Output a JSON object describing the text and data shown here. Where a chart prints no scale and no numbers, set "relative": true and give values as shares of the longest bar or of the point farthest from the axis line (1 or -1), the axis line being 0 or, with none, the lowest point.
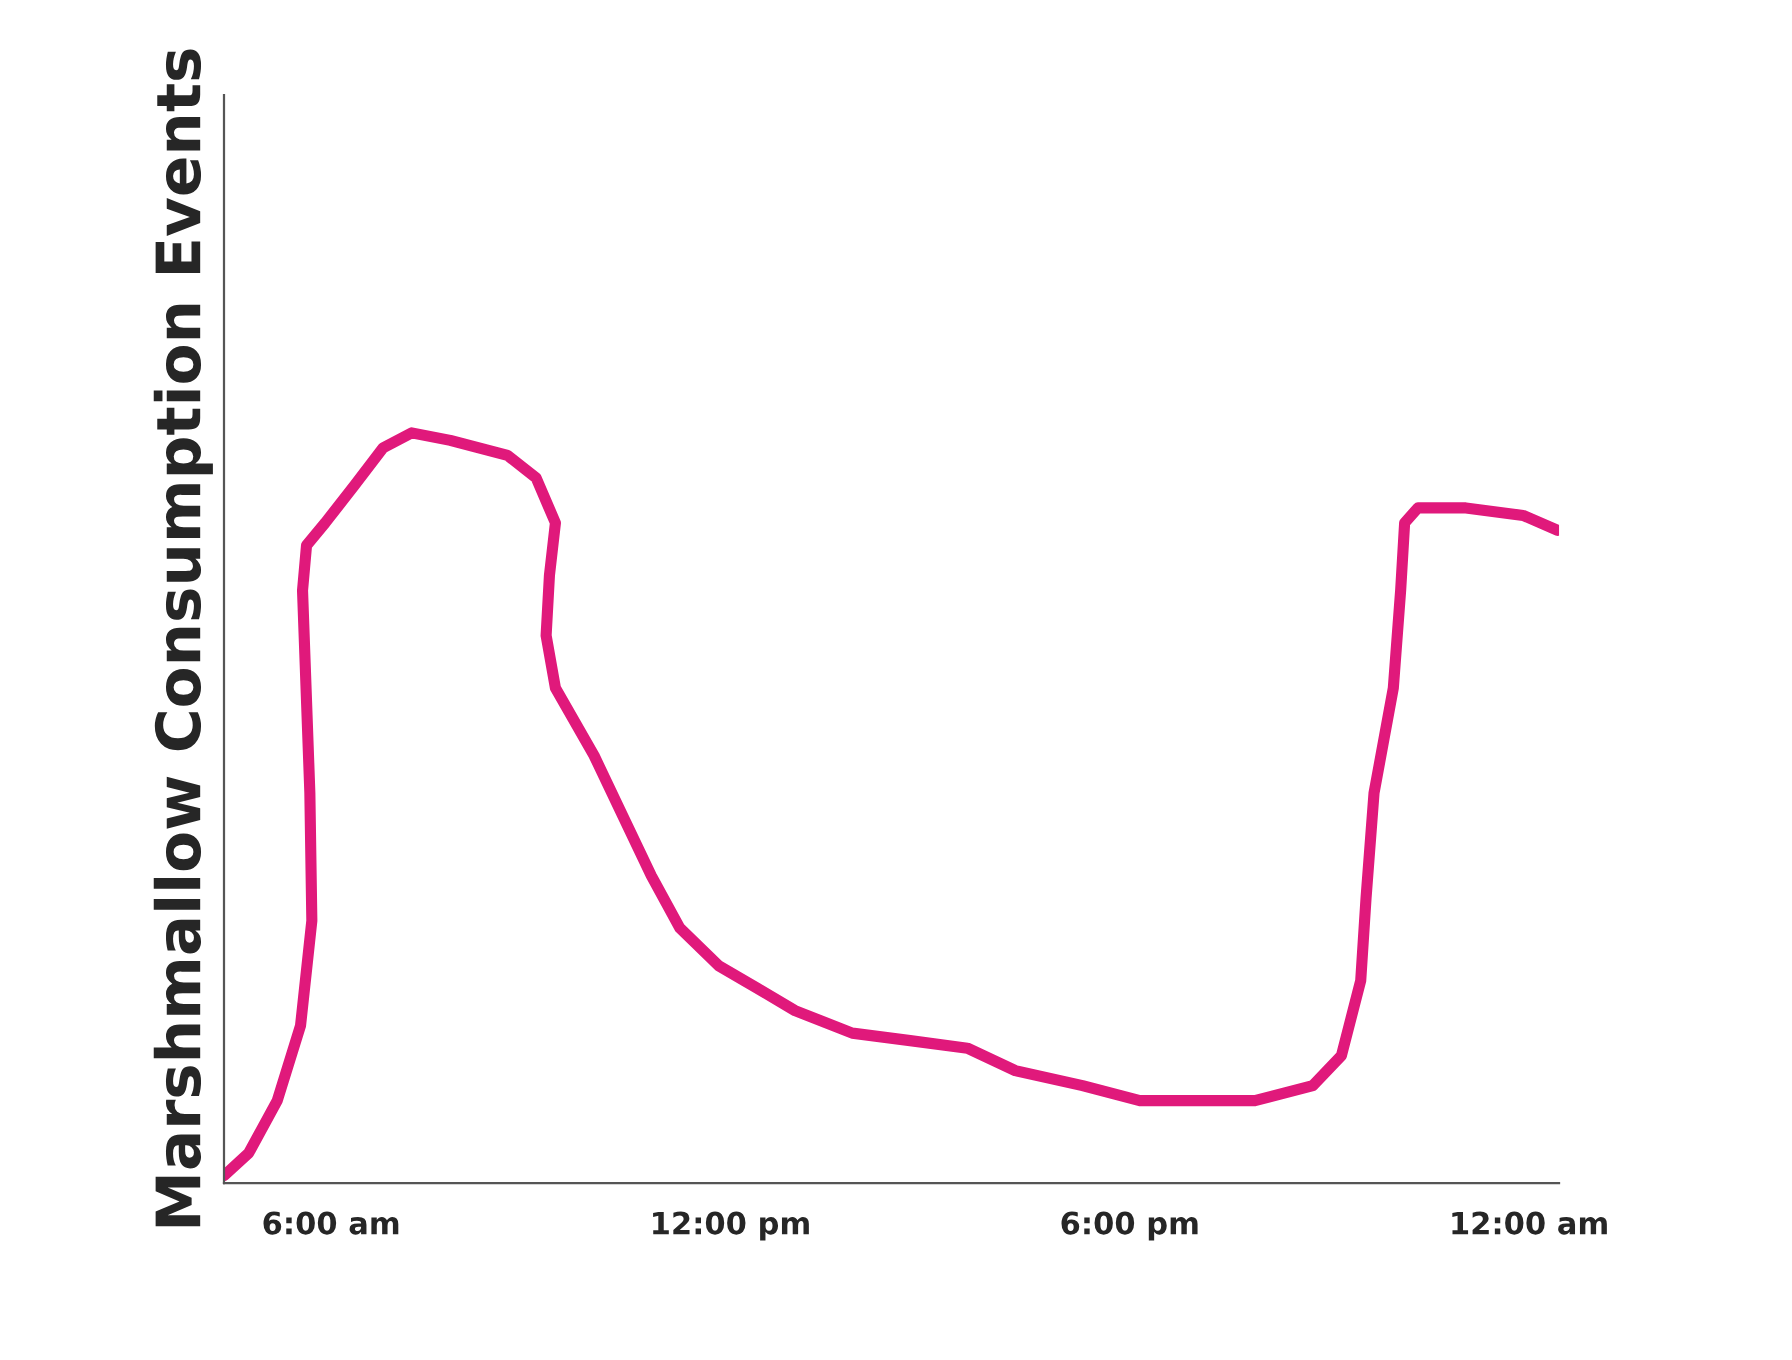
{
  "chart_data": {
    "type": "line",
    "ylabel": "Marshmallow Consumption Events",
    "relative": true,
    "x": [
      4.39,
      4.76,
      5.19,
      5.54,
      5.71,
      5.68,
      5.57,
      5.63,
      5.91,
      6.35,
      6.78,
      7.21,
      7.79,
      8.65,
      9.08,
      9.37,
      9.28,
      9.23,
      9.37,
      9.95,
      10.38,
      10.81,
      11.24,
      11.82,
      12.4,
      12.97,
      13.83,
      14.7,
      15.56,
      16.28,
      17.29,
      18.15,
      19.02,
      19.88,
      20.75,
      21.18,
      21.47,
      21.55,
      21.67,
      21.96,
      22.07,
      22.13,
      22.33,
      23.05,
      23.91,
      24.43
    ],
    "series": [
      {
        "color": "#e0197b",
        "values": [
          0.01,
          0.04,
          0.11,
          0.21,
          0.35,
          0.52,
          0.79,
          0.85,
          0.88,
          0.93,
          0.98,
          1.0,
          0.99,
          0.97,
          0.94,
          0.88,
          0.81,
          0.73,
          0.66,
          0.57,
          0.49,
          0.41,
          0.34,
          0.29,
          0.26,
          0.23,
          0.2,
          0.19,
          0.18,
          0.15,
          0.13,
          0.11,
          0.11,
          0.11,
          0.13,
          0.17,
          0.27,
          0.38,
          0.52,
          0.66,
          0.79,
          0.88,
          0.9,
          0.9,
          0.89,
          0.87
        ]
      }
    ],
    "xlim": [
      4.39,
      24.45
    ],
    "xticks": [
      {
        "value": 6,
        "label": "6:00 am"
      },
      {
        "value": 12,
        "label": "12:00 pm"
      },
      {
        "value": 18,
        "label": "6:00 pm"
      },
      {
        "value": 24,
        "label": "12:00 am"
      }
    ],
    "grid": false,
    "legend": false,
    "marker": "none",
    "line_style": "solid"
  }
}
